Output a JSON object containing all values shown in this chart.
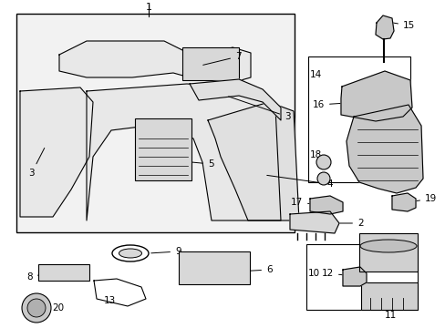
{
  "background_color": "#ffffff",
  "line_color": "#000000",
  "text_color": "#000000",
  "fill_light": "#e8e8e8",
  "fill_mid": "#d8d8d8",
  "fill_dark": "#c8c8c8"
}
